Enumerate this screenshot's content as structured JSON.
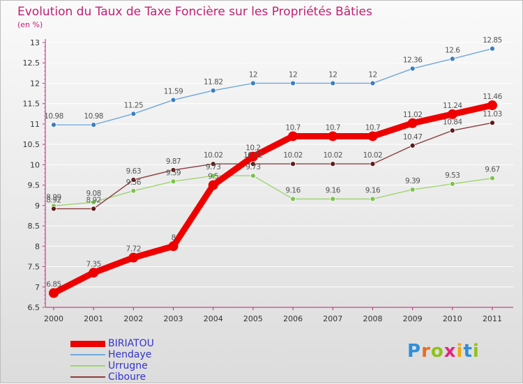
{
  "header": {
    "title": "Evolution du Taux de Taxe Foncière sur les Propriétés Bâties",
    "unit": "(en %)"
  },
  "brand": {
    "letters": [
      "P",
      "r",
      "o",
      "x",
      "i",
      "t",
      "i"
    ],
    "colors": [
      "#2f8fd8",
      "#e86d1f",
      "#8fc21b",
      "#e3267f",
      "#f2a900",
      "#2f8fd8",
      "#8fc21b"
    ]
  },
  "chart_data": {
    "type": "line",
    "x": [
      2000,
      2001,
      2002,
      2003,
      2004,
      2005,
      2006,
      2007,
      2008,
      2009,
      2010,
      2011
    ],
    "ylim": [
      6.5,
      13
    ],
    "yticks": [
      6.5,
      7,
      7.5,
      8,
      8.5,
      9,
      9.5,
      10,
      10.5,
      11,
      11.5,
      12,
      12.5,
      13
    ],
    "series": [
      {
        "name": "Hendaye",
        "color": "#6fa8dc",
        "marker": "#3a7fc1",
        "values": [
          10.98,
          10.98,
          11.25,
          11.59,
          11.82,
          12,
          12,
          12,
          12,
          12.36,
          12.6,
          12.85
        ]
      },
      {
        "name": "Urrugne",
        "color": "#9ed56f",
        "marker": "#7cc44d",
        "values": [
          8.99,
          9.08,
          9.36,
          9.59,
          9.73,
          9.73,
          9.16,
          9.16,
          9.16,
          9.39,
          9.53,
          9.67
        ]
      },
      {
        "name": "Ciboure",
        "color": "#8b3a3a",
        "marker": "#5e1a1a",
        "values": [
          8.92,
          8.92,
          9.63,
          9.87,
          10.02,
          10.02,
          10.02,
          10.02,
          10.02,
          10.47,
          10.84,
          11.03
        ]
      },
      {
        "name": "BIRIATOU",
        "color": "#ee0000",
        "marker": "#ee0000",
        "values": [
          6.85,
          7.35,
          7.72,
          8,
          9.5,
          10.2,
          10.7,
          10.7,
          10.7,
          11.02,
          11.24,
          11.46
        ]
      }
    ],
    "legend_order": [
      "BIRIATOU",
      "Hendaye",
      "Urrugne",
      "Ciboure"
    ],
    "labels": {
      "Hendaye": [
        "10.98",
        "10.98",
        "11.25",
        "11.59",
        "11.82",
        "12",
        "12",
        "12",
        "12",
        "12.36",
        "12.6",
        "12.85"
      ],
      "Urrugne": [
        "8.99",
        "9.08",
        "9.36",
        "9.59",
        "9.73",
        "9.73",
        "9.16",
        "9.16",
        "9.16",
        "9.39",
        "9.53",
        "9.67"
      ],
      "Ciboure": [
        "8.92",
        "8.92",
        "9.63",
        "9.87",
        "10.02",
        "10.02",
        "10.02",
        "10.02",
        "10.02",
        "10.47",
        "10.84",
        "11.03"
      ],
      "BIRIATOU": [
        "6.85",
        "7.35",
        "7.72",
        "8",
        "9.5",
        "10.2",
        "10.7",
        "10.7",
        "10.7",
        "11.02",
        "11.24",
        "11.46"
      ]
    },
    "grid": "horizontal"
  }
}
